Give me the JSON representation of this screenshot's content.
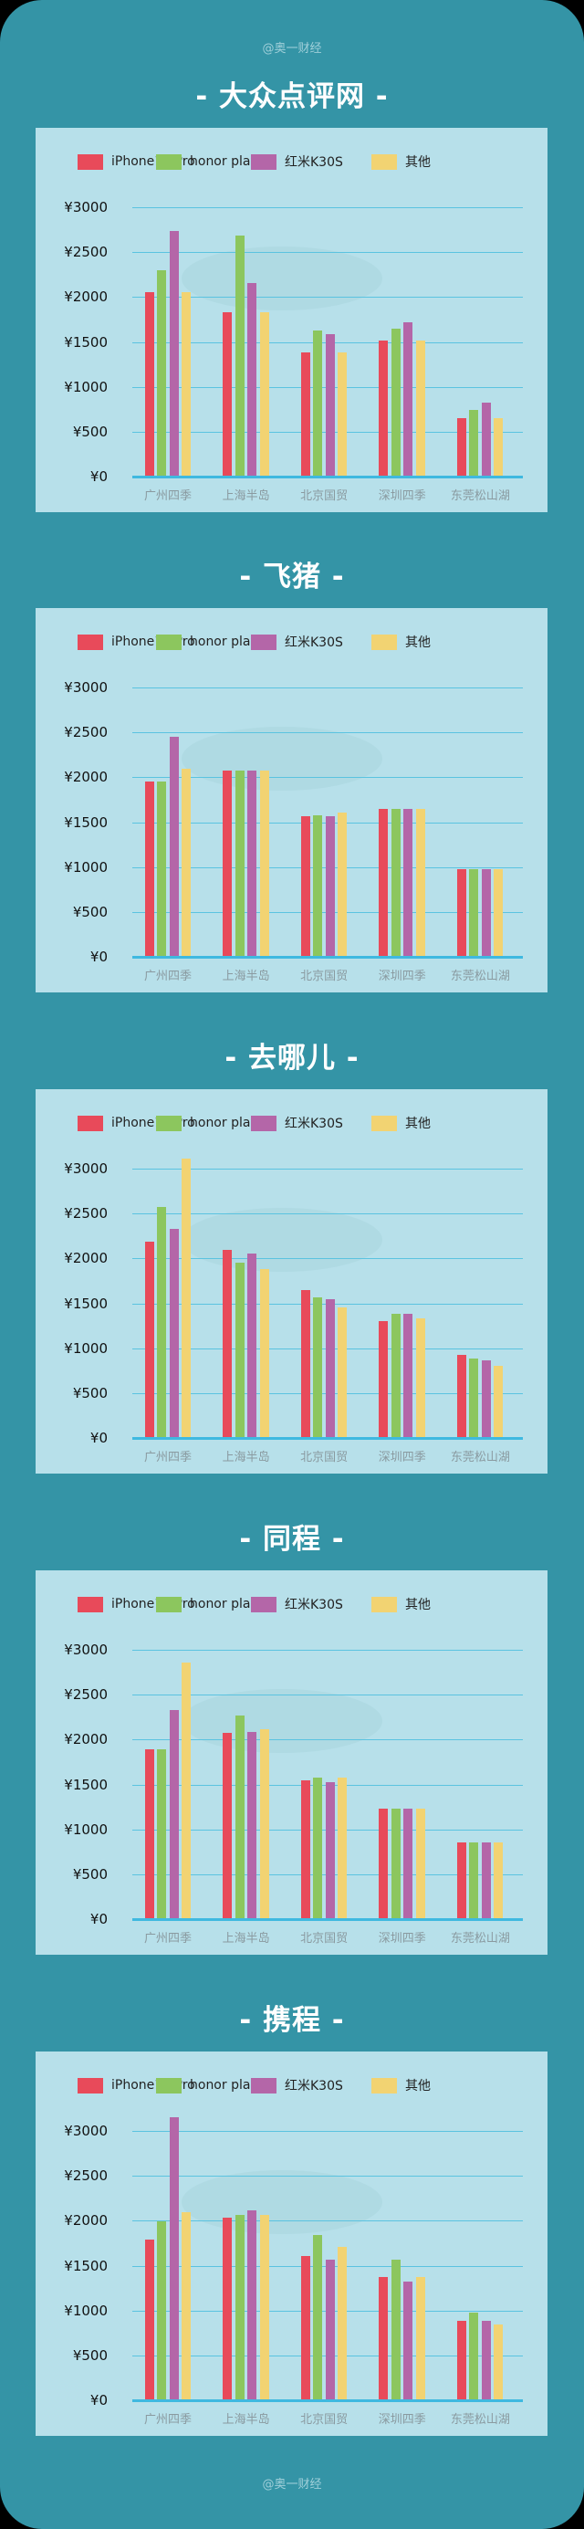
{
  "watermark_top": "@奥一财经",
  "watermark_bottom": "@奥一财经",
  "colors": {
    "background": "#3494A6",
    "panel": "#B7E0EA",
    "gridline": "#5BC3E0",
    "series": [
      "#E84A5A",
      "#8CC65E",
      "#B466A8",
      "#F2D372"
    ]
  },
  "legend": [
    "iPhone11 Pro",
    "honor play",
    "红米K30S",
    "其他"
  ],
  "y_ticks": [
    "¥3000",
    "¥2500",
    "¥2000",
    "¥1500",
    "¥1000",
    "¥500",
    "¥0"
  ],
  "sections": [
    {
      "title": "- 大众点评网 -"
    },
    {
      "title": "- 飞猪 -"
    },
    {
      "title": "- 去哪儿 -"
    },
    {
      "title": "- 同程 -"
    },
    {
      "title": "- 携程  -"
    }
  ],
  "chart_data": [
    {
      "type": "bar",
      "title": "- 大众点评网 -",
      "categories": [
        "广州四季",
        "上海半岛",
        "北京国贸",
        "深圳四季",
        "东莞松山湖"
      ],
      "series": [
        {
          "name": "iPhone11 Pro",
          "values": [
            2050,
            1830,
            1380,
            1520,
            650
          ]
        },
        {
          "name": "honor play",
          "values": [
            2300,
            2680,
            1630,
            1650,
            740
          ]
        },
        {
          "name": "红米K30S",
          "values": [
            2740,
            2160,
            1590,
            1720,
            820
          ]
        },
        {
          "name": "其他",
          "values": [
            2050,
            1830,
            1380,
            1520,
            650
          ]
        }
      ],
      "xlabel": "",
      "ylabel": "",
      "ylim": [
        0,
        3000
      ],
      "yticks": [
        0,
        500,
        1000,
        1500,
        2000,
        2500,
        3000
      ],
      "grid": true,
      "legend_position": "top"
    },
    {
      "type": "bar",
      "title": "- 飞猪 -",
      "categories": [
        "广州四季",
        "上海半岛",
        "北京国贸",
        "深圳四季",
        "东莞松山湖"
      ],
      "series": [
        {
          "name": "iPhone11 Pro",
          "values": [
            1955,
            2075,
            1570,
            1650,
            975
          ]
        },
        {
          "name": "honor play",
          "values": [
            1955,
            2075,
            1575,
            1650,
            975
          ]
        },
        {
          "name": "红米K30S",
          "values": [
            2455,
            2075,
            1570,
            1650,
            975
          ]
        },
        {
          "name": "其他",
          "values": [
            2100,
            2075,
            1610,
            1650,
            975
          ]
        }
      ],
      "xlabel": "",
      "ylabel": "",
      "ylim": [
        0,
        3000
      ],
      "yticks": [
        0,
        500,
        1000,
        1500,
        2000,
        2500,
        3000
      ],
      "grid": true,
      "legend_position": "top"
    },
    {
      "type": "bar",
      "title": "- 去哪儿 -",
      "categories": [
        "广州四季",
        "上海半岛",
        "北京国贸",
        "深圳四季",
        "东莞松山湖"
      ],
      "series": [
        {
          "name": "iPhone11 Pro",
          "values": [
            2185,
            2100,
            1650,
            1305,
            930
          ]
        },
        {
          "name": "honor play",
          "values": [
            2570,
            1950,
            1565,
            1385,
            885
          ]
        },
        {
          "name": "红米K30S",
          "values": [
            2325,
            2055,
            1545,
            1385,
            865
          ]
        },
        {
          "name": "其他",
          "values": [
            3115,
            1880,
            1450,
            1330,
            805
          ]
        }
      ],
      "xlabel": "",
      "ylabel": "",
      "ylim": [
        0,
        3000
      ],
      "yticks": [
        0,
        500,
        1000,
        1500,
        2000,
        2500,
        3000
      ],
      "grid": true,
      "legend_position": "top"
    },
    {
      "type": "bar",
      "title": "- 同程 -",
      "categories": [
        "广州四季",
        "上海半岛",
        "北京国贸",
        "深圳四季",
        "东莞松山湖"
      ],
      "series": [
        {
          "name": "iPhone11 Pro",
          "values": [
            1890,
            2075,
            1550,
            1235,
            850
          ]
        },
        {
          "name": "honor play",
          "values": [
            1890,
            2265,
            1580,
            1235,
            850
          ]
        },
        {
          "name": "红米K30S",
          "values": [
            2330,
            2085,
            1525,
            1235,
            850
          ]
        },
        {
          "name": "其他",
          "values": [
            2860,
            2120,
            1580,
            1235,
            850
          ]
        }
      ],
      "xlabel": "",
      "ylabel": "",
      "ylim": [
        0,
        3000
      ],
      "yticks": [
        0,
        500,
        1000,
        1500,
        2000,
        2500,
        3000
      ],
      "grid": true,
      "legend_position": "top"
    },
    {
      "type": "bar",
      "title": "- 携程  -",
      "categories": [
        "广州四季",
        "上海半岛",
        "北京国贸",
        "深圳四季",
        "东莞松山湖"
      ],
      "series": [
        {
          "name": "iPhone11 Pro",
          "values": [
            1790,
            2030,
            1605,
            1375,
            885
          ]
        },
        {
          "name": "honor play",
          "values": [
            1990,
            2065,
            1840,
            1565,
            980
          ]
        },
        {
          "name": "红米K30S",
          "values": [
            3155,
            2115,
            1570,
            1320,
            885
          ]
        },
        {
          "name": "其他",
          "values": [
            2090,
            2065,
            1705,
            1375,
            845
          ]
        }
      ],
      "xlabel": "",
      "ylabel": "",
      "ylim": [
        0,
        3000
      ],
      "yticks": [
        0,
        500,
        1000,
        1500,
        2000,
        2500,
        3000
      ],
      "grid": true,
      "legend_position": "top"
    }
  ]
}
